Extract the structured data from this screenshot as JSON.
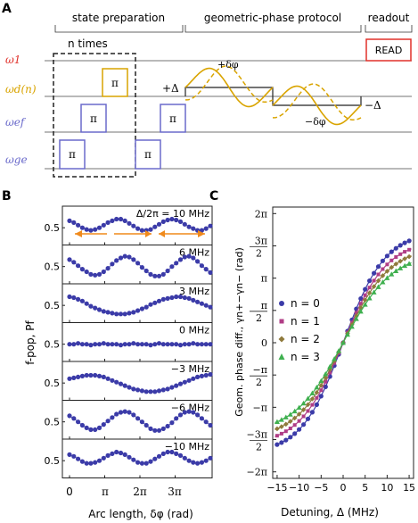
{
  "panel_a": {
    "letter": "A",
    "section_labels": [
      "state preparation",
      "geometric-phase protocol",
      "readout"
    ],
    "channel_labels": [
      "ω1",
      "ωd(n)",
      "ωef",
      "ωge"
    ],
    "channel_colors": [
      "#e0302a",
      "#d9a400",
      "#6a6acb",
      "#6a6acb"
    ],
    "n_times": "n times",
    "pi": "π",
    "read": "READ",
    "plus_delta": "+Δ",
    "minus_delta": "−Δ",
    "plus_dphi": "+δφ",
    "minus_dphi": "−δφ"
  },
  "panel_b": {
    "letter": "B",
    "ylabel": "f-pop, Pf",
    "xlabel": "Arc length, δφ (rad)",
    "x_ticks": [
      "0",
      "π",
      "2π",
      "3π"
    ],
    "y_ticks": [
      "0.5"
    ],
    "subplots": [
      {
        "label": "Δ/2π = 10 MHz",
        "values": [
          0.58,
          0.56,
          0.53,
          0.5,
          0.48,
          0.47,
          0.48,
          0.5,
          0.53,
          0.56,
          0.58,
          0.6,
          0.6,
          0.58,
          0.55,
          0.52,
          0.49,
          0.47,
          0.47,
          0.48,
          0.51,
          0.54,
          0.57,
          0.59,
          0.6,
          0.59,
          0.57,
          0.54,
          0.51,
          0.49,
          0.47,
          0.47,
          0.49,
          0.52
        ]
      },
      {
        "label": "6 MHz",
        "values": [
          0.58,
          0.55,
          0.51,
          0.47,
          0.44,
          0.41,
          0.4,
          0.41,
          0.44,
          0.48,
          0.53,
          0.57,
          0.6,
          0.62,
          0.61,
          0.58,
          0.54,
          0.49,
          0.45,
          0.41,
          0.39,
          0.39,
          0.41,
          0.45,
          0.5,
          0.54,
          0.58,
          0.61,
          0.62,
          0.6,
          0.56,
          0.51,
          0.47,
          0.43
        ]
      },
      {
        "label": "3 MHz",
        "values": [
          0.6,
          0.59,
          0.57,
          0.55,
          0.52,
          0.49,
          0.47,
          0.45,
          0.43,
          0.42,
          0.41,
          0.4,
          0.4,
          0.4,
          0.41,
          0.42,
          0.44,
          0.46,
          0.48,
          0.51,
          0.53,
          0.55,
          0.57,
          0.58,
          0.59,
          0.6,
          0.6,
          0.59,
          0.58,
          0.56,
          0.54,
          0.52,
          0.5,
          0.48
        ]
      },
      {
        "label": "0 MHz",
        "values": [
          0.5,
          0.5,
          0.51,
          0.5,
          0.5,
          0.49,
          0.5,
          0.5,
          0.51,
          0.5,
          0.5,
          0.5,
          0.49,
          0.5,
          0.5,
          0.51,
          0.5,
          0.5,
          0.5,
          0.49,
          0.5,
          0.51,
          0.5,
          0.5,
          0.5,
          0.5,
          0.49,
          0.5,
          0.5,
          0.51,
          0.5,
          0.5,
          0.5,
          0.5
        ]
      },
      {
        "label": "−3 MHz",
        "values": [
          0.55,
          0.56,
          0.57,
          0.58,
          0.59,
          0.59,
          0.59,
          0.58,
          0.57,
          0.55,
          0.53,
          0.51,
          0.49,
          0.47,
          0.45,
          0.43,
          0.42,
          0.41,
          0.4,
          0.4,
          0.4,
          0.41,
          0.42,
          0.43,
          0.45,
          0.47,
          0.49,
          0.51,
          0.53,
          0.55,
          0.57,
          0.58,
          0.59,
          0.6
        ]
      },
      {
        "label": "−6 MHz",
        "values": [
          0.57,
          0.54,
          0.5,
          0.46,
          0.43,
          0.41,
          0.41,
          0.43,
          0.47,
          0.51,
          0.55,
          0.59,
          0.61,
          0.62,
          0.61,
          0.58,
          0.54,
          0.5,
          0.46,
          0.42,
          0.4,
          0.4,
          0.42,
          0.45,
          0.49,
          0.54,
          0.58,
          0.61,
          0.62,
          0.61,
          0.58,
          0.54,
          0.5,
          0.46
        ]
      },
      {
        "label": "−10 MHz",
        "values": [
          0.57,
          0.55,
          0.52,
          0.49,
          0.47,
          0.47,
          0.48,
          0.5,
          0.53,
          0.56,
          0.58,
          0.6,
          0.59,
          0.57,
          0.54,
          0.51,
          0.48,
          0.47,
          0.47,
          0.49,
          0.52,
          0.55,
          0.58,
          0.6,
          0.6,
          0.58,
          0.56,
          0.53,
          0.5,
          0.48,
          0.47,
          0.48,
          0.5,
          0.53
        ]
      }
    ]
  },
  "chart_data": {
    "type": "scatter",
    "letter": "C",
    "xlabel": "Detuning, Δ (MHz)",
    "ylabel": "Geom. phase diff., γn+−γn− (rad)",
    "xlim": [
      -16,
      16
    ],
    "ylim": [
      -6.6,
      6.6
    ],
    "x_ticks": [
      "−15",
      "−10",
      "−5",
      "0",
      "5",
      "10",
      "15"
    ],
    "y_ticks": [
      "−2π",
      "−3π/2",
      "−π",
      "−π/2",
      "0",
      "π/2",
      "π",
      "3π/2",
      "2π"
    ],
    "series": [
      {
        "name": "n = 0",
        "color": "#3b3ba8",
        "marker": "circle",
        "scale": 5.4,
        "k": 0.105
      },
      {
        "name": "n = 1",
        "color": "#b03d86",
        "marker": "square",
        "scale": 5.0,
        "k": 0.1
      },
      {
        "name": "n = 2",
        "color": "#8f7a3c",
        "marker": "diamond",
        "scale": 4.7,
        "k": 0.095
      },
      {
        "name": "n = 3",
        "color": "#3fb04f",
        "marker": "triangle",
        "scale": 4.4,
        "k": 0.09
      }
    ],
    "legend": "left"
  }
}
